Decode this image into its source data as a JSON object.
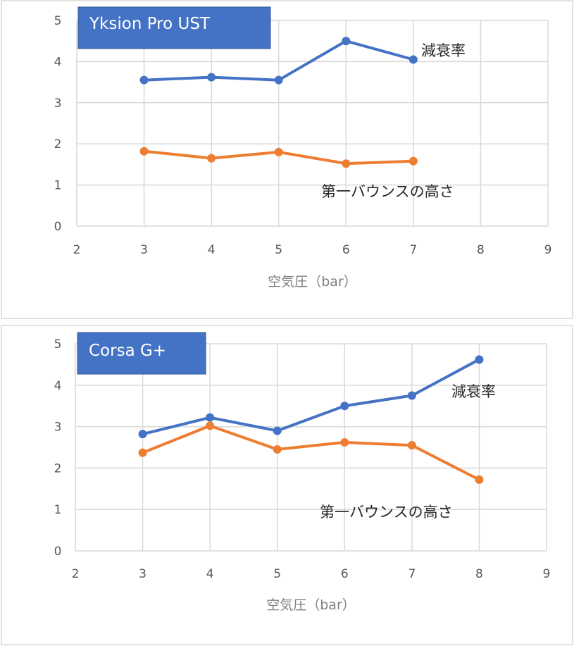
{
  "chart_data": [
    {
      "type": "line",
      "title": "Yksion Pro UST",
      "xlabel": "空気圧（bar）",
      "ylabel": "",
      "xlim": [
        2,
        9
      ],
      "ylim": [
        0,
        5
      ],
      "x_ticks": [
        "2",
        "3",
        "4",
        "5",
        "6",
        "7",
        "8",
        "9"
      ],
      "y_ticks": [
        "0",
        "1",
        "2",
        "3",
        "4",
        "5"
      ],
      "grid": true,
      "colors": {
        "title_box": "#4472c4",
        "series": [
          "#4472c4",
          "#ed7d31"
        ]
      },
      "series": [
        {
          "name": "減衰率",
          "x": [
            3,
            4,
            5,
            6,
            7
          ],
          "values": [
            3.55,
            3.62,
            3.55,
            4.5,
            4.05
          ]
        },
        {
          "name": "第一バウンスの高さ",
          "x": [
            3,
            4,
            5,
            6,
            7
          ],
          "values": [
            1.82,
            1.65,
            1.8,
            1.52,
            1.58
          ]
        }
      ]
    },
    {
      "type": "line",
      "title": "Corsa G+",
      "xlabel": "空気圧（bar）",
      "ylabel": "",
      "xlim": [
        2,
        9
      ],
      "ylim": [
        0,
        5
      ],
      "x_ticks": [
        "2",
        "3",
        "4",
        "5",
        "6",
        "7",
        "8",
        "9"
      ],
      "y_ticks": [
        "0",
        "1",
        "2",
        "3",
        "4",
        "5"
      ],
      "grid": true,
      "colors": {
        "title_box": "#4472c4",
        "series": [
          "#4472c4",
          "#ed7d31"
        ]
      },
      "series": [
        {
          "name": "減衰率",
          "x": [
            3,
            4,
            5,
            6,
            7,
            8
          ],
          "values": [
            2.82,
            3.22,
            2.9,
            3.5,
            3.75,
            4.62
          ]
        },
        {
          "name": "第一バウンスの高さ",
          "x": [
            3,
            4,
            5,
            6,
            7,
            8
          ],
          "values": [
            2.37,
            3.02,
            2.45,
            2.62,
            2.55,
            1.72
          ]
        }
      ]
    }
  ]
}
